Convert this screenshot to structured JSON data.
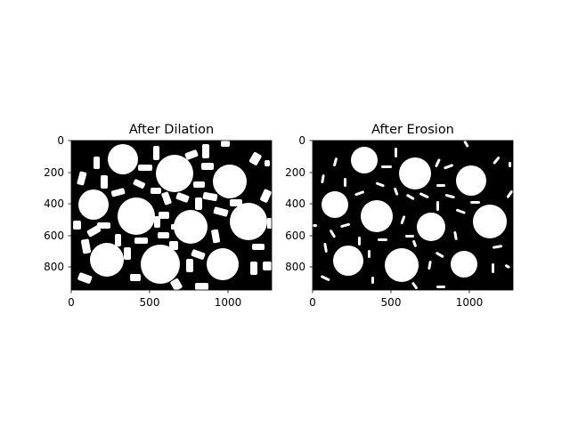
{
  "figure": {
    "panels": [
      {
        "id": "dilation",
        "title": "After Dilation",
        "x_ticks": [
          "0",
          "500",
          "1000"
        ],
        "y_ticks": [
          "0",
          "200",
          "400",
          "600",
          "800"
        ]
      },
      {
        "id": "erosion",
        "title": "After Erosion",
        "x_ticks": [
          "0",
          "500",
          "1000"
        ],
        "y_ticks": [
          "0",
          "200",
          "400",
          "600",
          "800"
        ]
      }
    ]
  },
  "colors": {
    "background": "#000000",
    "foreground": "#ffffff"
  }
}
